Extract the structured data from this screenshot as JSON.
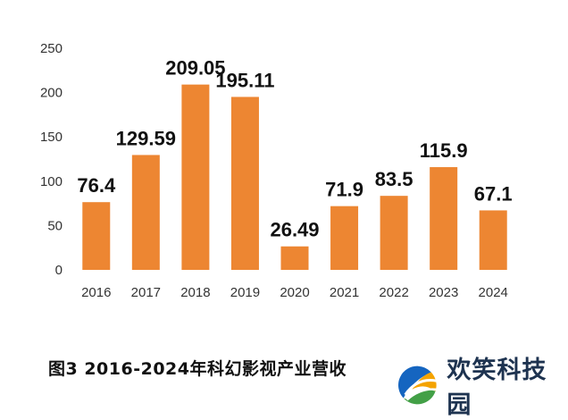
{
  "chart_data": {
    "type": "bar",
    "categories": [
      "2016",
      "2017",
      "2018",
      "2019",
      "2020",
      "2021",
      "2022",
      "2023",
      "2024"
    ],
    "values": [
      76.4,
      129.59,
      209.05,
      195.11,
      26.49,
      71.9,
      83.5,
      115.9,
      67.1
    ],
    "data_labels": [
      "76.4",
      "129.59",
      "209.05",
      "195.11",
      "26.49",
      "71.9",
      "83.5",
      "115.9",
      "67.1"
    ],
    "ylim": [
      0,
      250
    ],
    "yticks": [
      0,
      50,
      100,
      150,
      200,
      250
    ],
    "grid": false,
    "bar_color": "#ED8632"
  },
  "caption": "图3  2016-2024年科幻影视产业营收",
  "watermark": {
    "brand_text": "欢笑科技园",
    "icon": "globe-logo-icon",
    "colors": [
      "#1565C0",
      "#43A047",
      "#F4A300"
    ]
  }
}
